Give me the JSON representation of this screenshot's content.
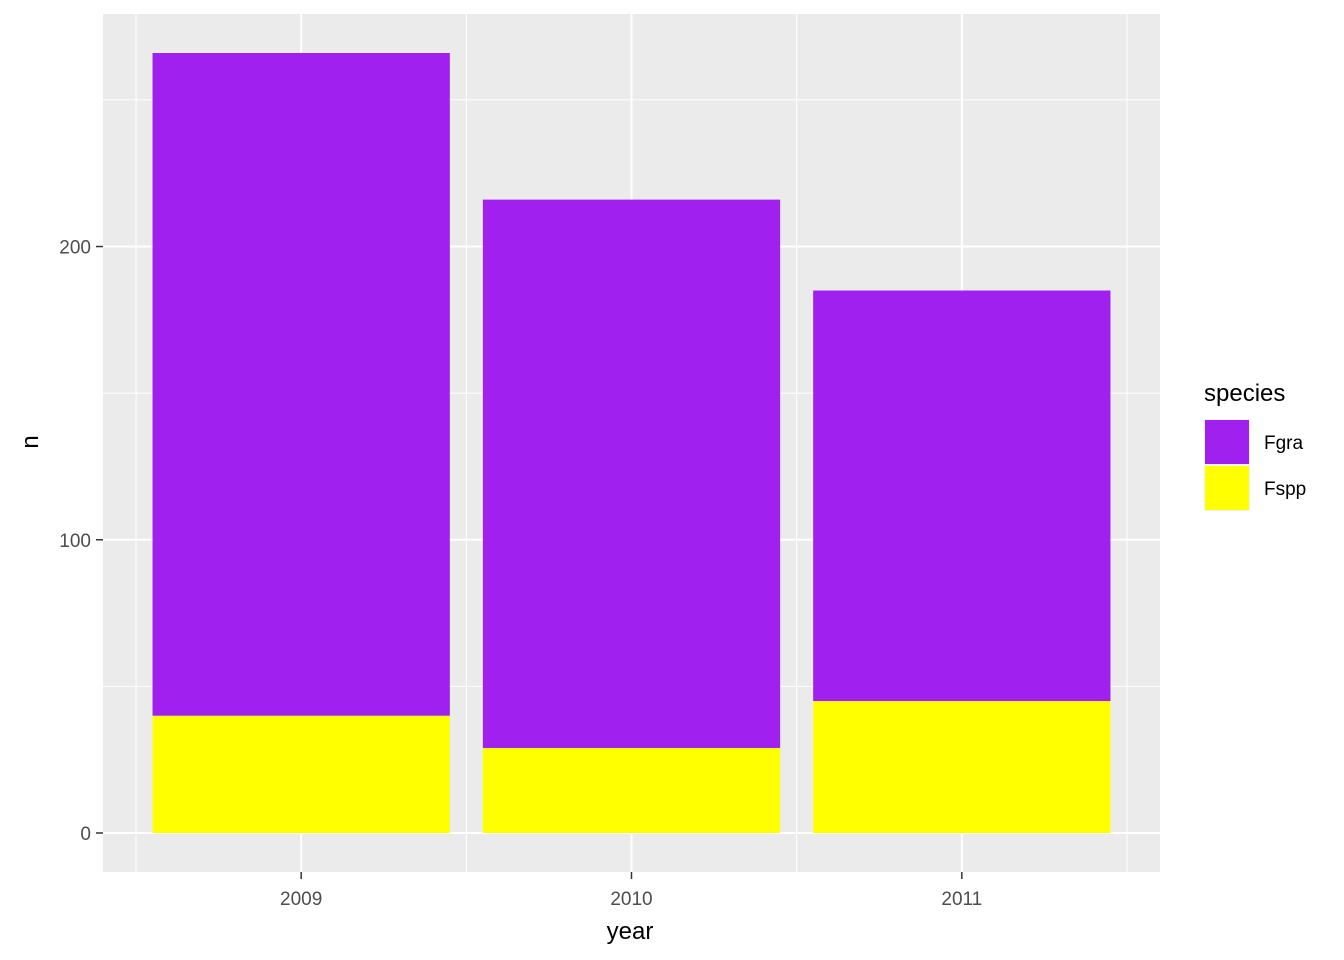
{
  "chart_data": {
    "type": "bar",
    "stacked": true,
    "categories": [
      "2009",
      "2010",
      "2011"
    ],
    "series": [
      {
        "name": "Fspp",
        "color": "#FFFF00",
        "values": [
          40,
          29,
          45
        ]
      },
      {
        "name": "Fgra",
        "color": "#A020F0",
        "values": [
          226,
          187,
          140
        ]
      }
    ],
    "xlabel": "year",
    "ylabel": "n",
    "yticks": [
      0,
      100,
      200
    ],
    "ylim": [
      -13.3,
      279.3
    ],
    "grid": true,
    "panel_color": "#EBEBEB",
    "legend": {
      "title": "species",
      "position": "right",
      "entries": [
        {
          "label": "Fgra",
          "color": "#A020F0"
        },
        {
          "label": "Fspp",
          "color": "#FFFF00"
        }
      ]
    }
  }
}
